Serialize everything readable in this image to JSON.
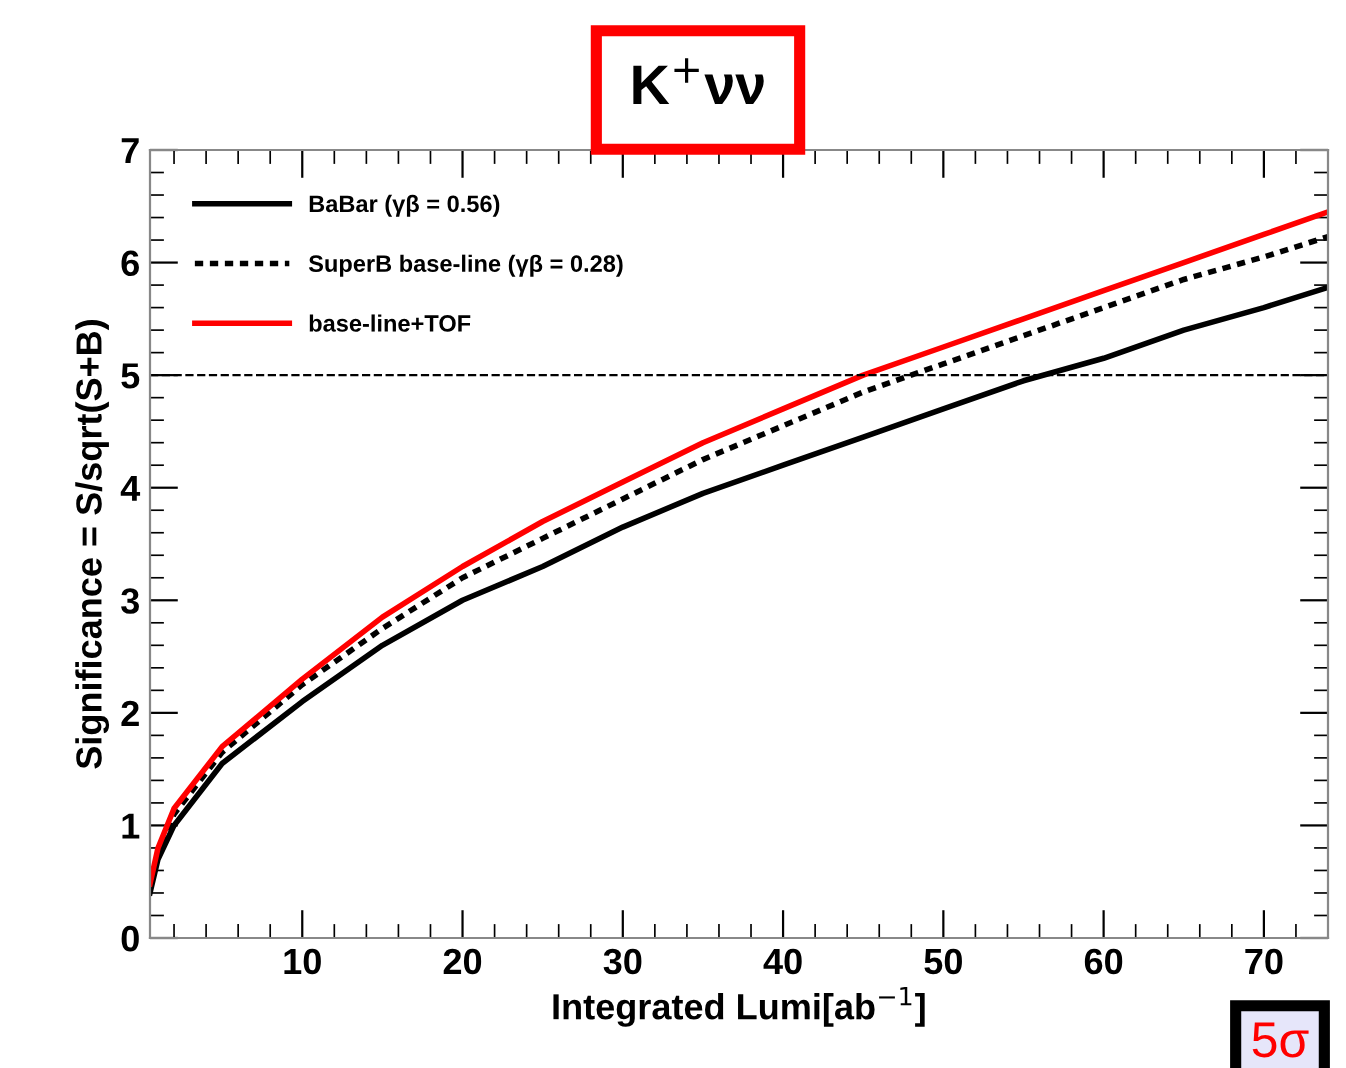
{
  "chart_data": {
    "type": "line",
    "title": "K$^{+}$νν",
    "xlabel": "Integrated Lumi[ab$^{−1}$]",
    "ylabel": "Significance = S/sqrt(S+B)",
    "x": [
      0.5,
      1,
      2,
      5,
      10,
      15,
      20,
      25,
      30,
      35,
      40,
      45,
      50,
      55,
      60,
      65,
      70,
      74
    ],
    "series": [
      {
        "name": "BaBar (γβ = 0.56)",
        "color": "#000000",
        "line_style": "solid",
        "values": [
          0.4,
          0.7,
          1.0,
          1.55,
          2.1,
          2.6,
          3.0,
          3.3,
          3.65,
          3.95,
          4.2,
          4.45,
          4.7,
          4.95,
          5.15,
          5.4,
          5.6,
          5.78
        ]
      },
      {
        "name": "SuperB base-line (γβ = 0.28)",
        "color": "#000000",
        "line_style": "dotted",
        "values": [
          0.45,
          0.75,
          1.1,
          1.65,
          2.25,
          2.75,
          3.2,
          3.55,
          3.9,
          4.25,
          4.55,
          4.85,
          5.1,
          5.35,
          5.6,
          5.85,
          6.05,
          6.23
        ]
      },
      {
        "name": "base-line+TOF",
        "color": "#ff0000",
        "line_style": "solid",
        "values": [
          0.48,
          0.8,
          1.15,
          1.7,
          2.3,
          2.85,
          3.3,
          3.7,
          4.05,
          4.4,
          4.7,
          5.0,
          5.25,
          5.5,
          5.75,
          6.0,
          6.25,
          6.45
        ]
      }
    ],
    "xlim": [
      0.5,
      74
    ],
    "xticks": [
      10,
      20,
      30,
      40,
      50,
      60,
      70
    ],
    "ylim": [
      0,
      7
    ],
    "yticks": [
      0,
      1,
      2,
      3,
      4,
      5,
      6,
      7
    ],
    "ref_lines": [
      {
        "axis": "y",
        "value": 5,
        "line_style": "dashed",
        "color": "#000000"
      }
    ],
    "annotations": [
      "5σ"
    ],
    "legend": "top left",
    "grid": false
  }
}
